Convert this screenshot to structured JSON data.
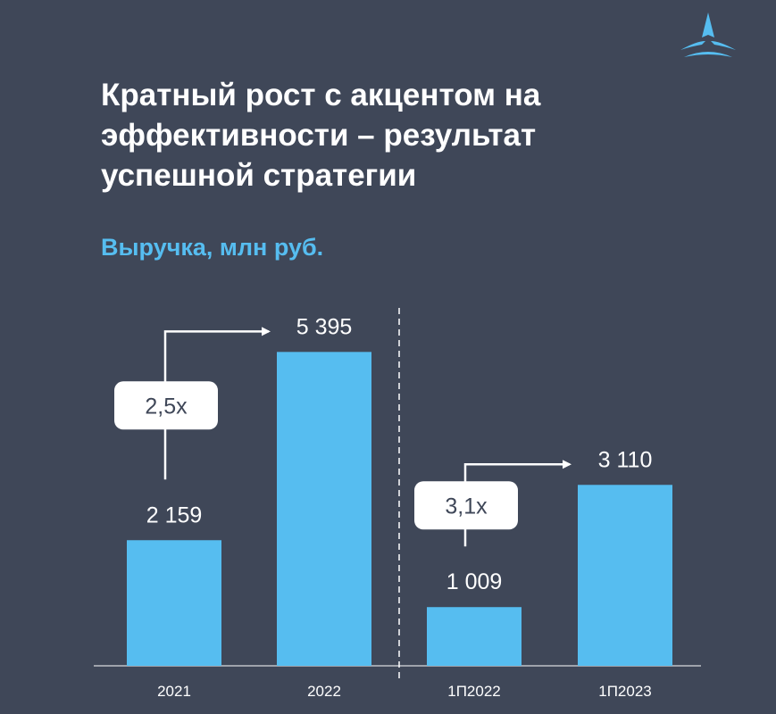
{
  "slide": {
    "title_lines": [
      "Кратный рост с акцентом на",
      "эффективности – результат",
      "успешной стратегии"
    ]
  },
  "chart_data": {
    "type": "bar",
    "title": "Выручка, млн руб.",
    "categories": [
      "2021",
      "2022",
      "1П2022",
      "1П2023"
    ],
    "values": [
      2159,
      5395,
      1009,
      3110
    ],
    "value_labels": [
      "2 159",
      "5 395",
      "1 009",
      "3 110"
    ],
    "ylim": [
      0,
      5400
    ],
    "grid": false,
    "annotations": [
      {
        "from": 0,
        "to": 1,
        "label": "2,5x"
      },
      {
        "from": 2,
        "to": 3,
        "label": "3,1x"
      }
    ],
    "colors": {
      "bar": "#56bdf0",
      "background": "#3f4758",
      "text": "#ffffff",
      "accent": "#56bdf0"
    }
  }
}
